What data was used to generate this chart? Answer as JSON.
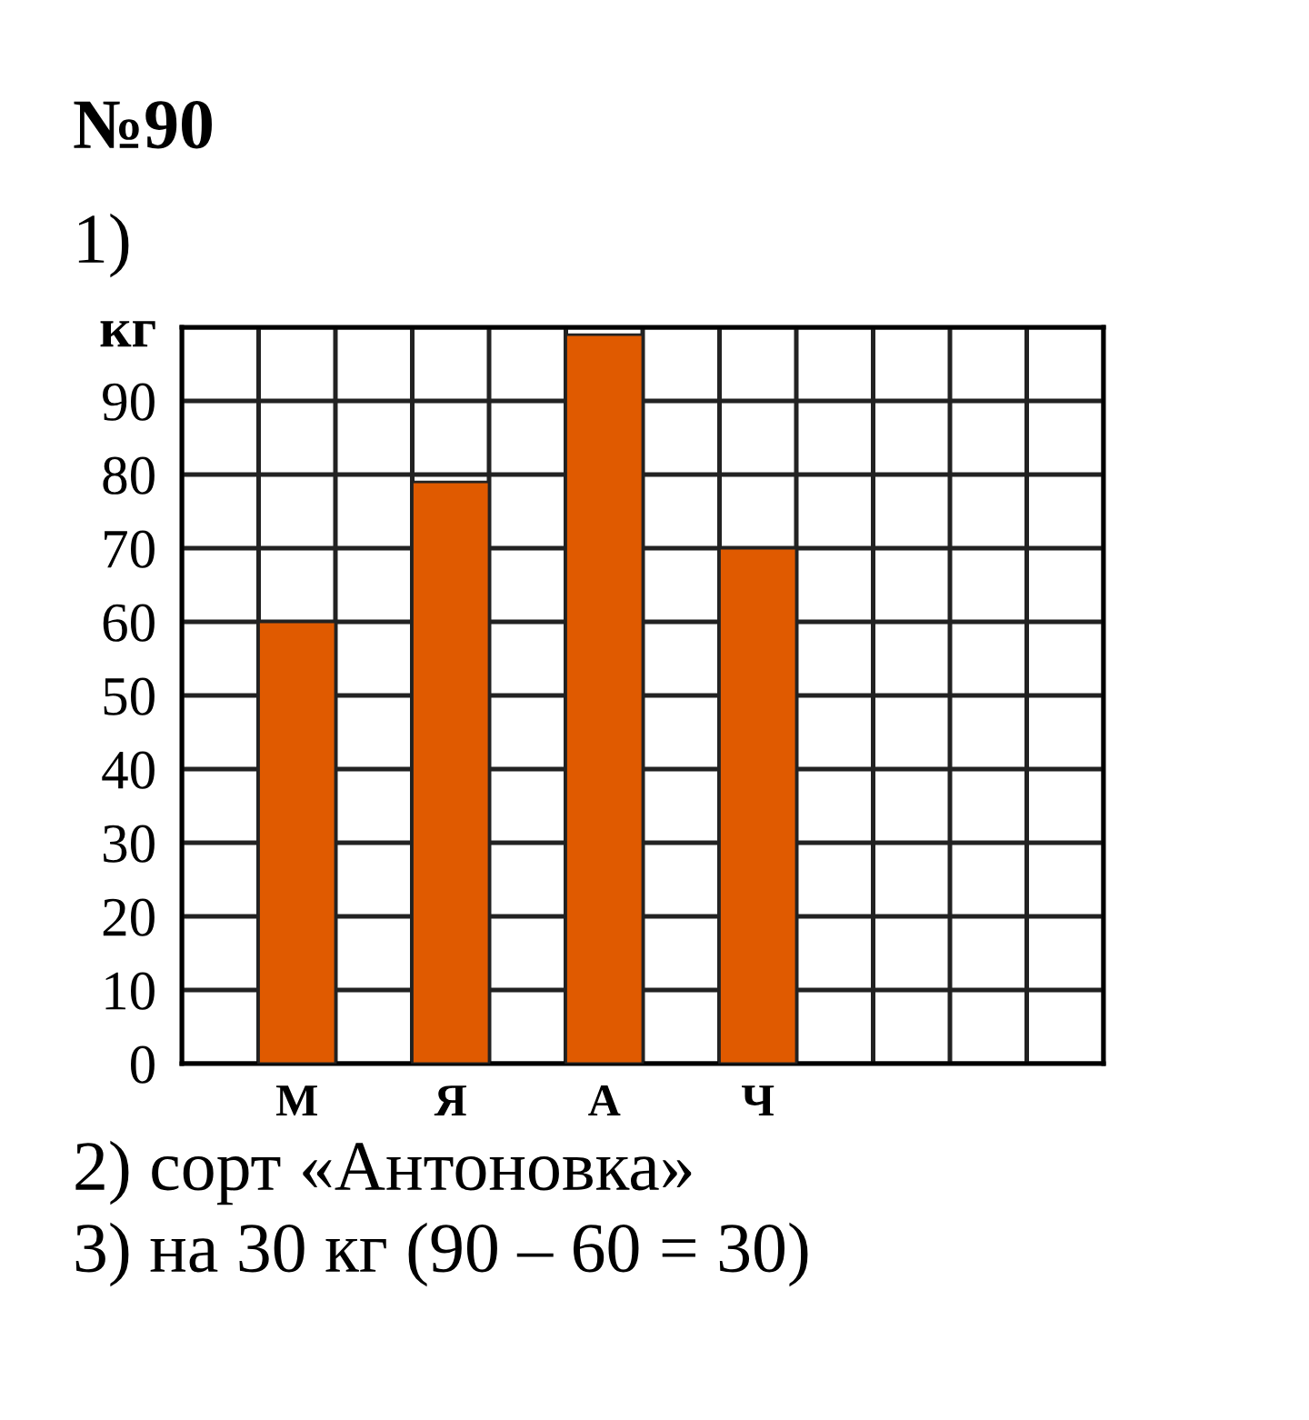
{
  "chart_data": {
    "type": "bar",
    "title": "№90",
    "categories": [
      null,
      "М",
      null,
      "Я",
      null,
      "А",
      null,
      "Ч",
      null,
      null,
      null,
      null
    ],
    "values": [
      null,
      60,
      null,
      79,
      null,
      99,
      null,
      70,
      null,
      null,
      null,
      null
    ],
    "color": "#e05a00",
    "ylim": [
      0,
      100
    ],
    "yticks": [
      0,
      10,
      20,
      30,
      40,
      50,
      60,
      70,
      80,
      90,
      {
        "value": 100,
        "label": "кг"
      }
    ],
    "grid": true,
    "annotations": [
      "1)",
      "2) сорт «Антоновка»",
      "3) на 30 кг (90 – 60 = 30)"
    ]
  }
}
